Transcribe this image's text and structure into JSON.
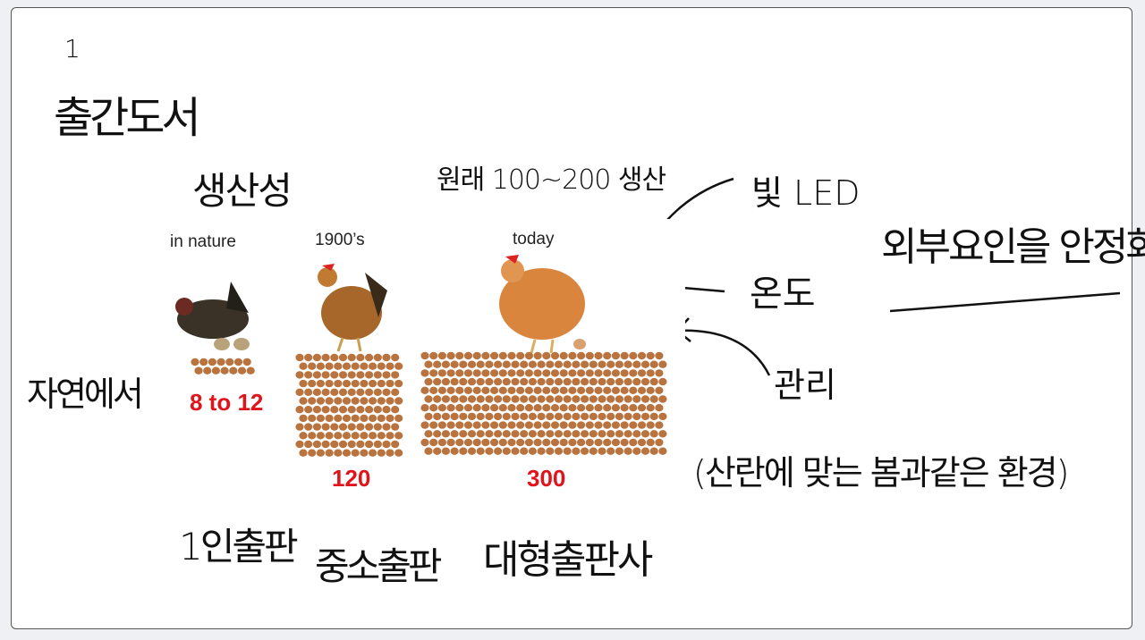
{
  "notes": {
    "number": "1",
    "title": "출간도서",
    "productivity": "생산성",
    "originally": "원래 100~200 생산",
    "light": "빛 LED",
    "temperature": "온도",
    "management": "관리",
    "stabilize": "외부요인을 안정화",
    "in_nature_ko": "자연에서",
    "environment": "(산란에 맞는 봄과같은 환경)",
    "one_person": "1인출판",
    "small_medium": "중소출판",
    "large": "대형출판사"
  },
  "photo": {
    "columns": [
      {
        "label": "in nature",
        "count": "8 to 12"
      },
      {
        "label": "1900’s",
        "count": "120"
      },
      {
        "label": "today",
        "count": "300"
      }
    ],
    "egg_color": "#b8733f",
    "count_color": "#e0141b"
  }
}
